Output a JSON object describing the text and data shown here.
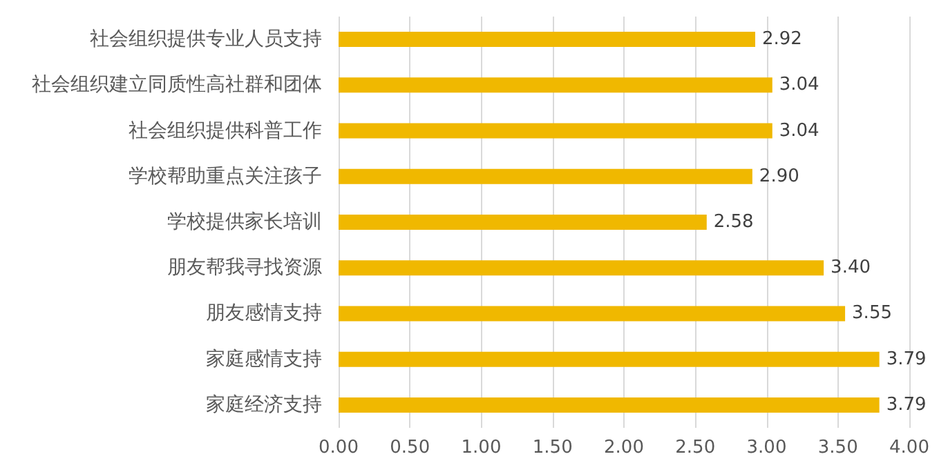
{
  "chart_data": {
    "type": "bar",
    "orientation": "horizontal",
    "categories": [
      "社会组织提供专业人员支持",
      "社会组织建立同质性高社群和团体",
      "社会组织提供科普工作",
      "学校帮助重点关注孩子",
      "学校提供家长培训",
      "朋友帮我寻找资源",
      "朋友感情支持",
      "家庭感情支持",
      "家庭经济支持"
    ],
    "values": [
      2.92,
      3.04,
      3.04,
      2.9,
      2.58,
      3.4,
      3.55,
      3.79,
      3.79
    ],
    "value_labels": [
      "2.92",
      "3.04",
      "3.04",
      "2.90",
      "2.58",
      "3.40",
      "3.55",
      "3.79",
      "3.79"
    ],
    "color": "#f0b800",
    "xlim": [
      0,
      4
    ],
    "xticks": [
      {
        "value": 0,
        "label": "0.00"
      },
      {
        "value": 0.5,
        "label": "0.50"
      },
      {
        "value": 1,
        "label": "1.00"
      },
      {
        "value": 1.5,
        "label": "1.50"
      },
      {
        "value": 2,
        "label": "2.00"
      },
      {
        "value": 2.5,
        "label": "2.50"
      },
      {
        "value": 3,
        "label": "3.00"
      },
      {
        "value": 3.5,
        "label": "3.50"
      },
      {
        "value": 4,
        "label": "4.00"
      }
    ],
    "grid": "x"
  }
}
